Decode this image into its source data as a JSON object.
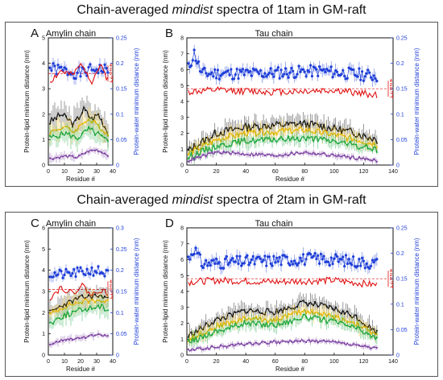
{
  "figure": {
    "top_title": {
      "pre": "Chain-averaged ",
      "em": "mindist",
      "post": " spectra of 1tam in GM-raft"
    },
    "bottom_title": {
      "pre": "Chain-averaged ",
      "em": "mindist",
      "post": " spectra of 2tam in GM-raft"
    }
  },
  "colors": {
    "water": "#1f3fd8",
    "charge": "#e01010",
    "black_series": "#111111",
    "gold_series": "#e8b800",
    "green_series": "#1aa53c",
    "purple_series": "#7a3fa0",
    "axis": "#111111"
  },
  "chart_data": [
    {
      "id": "A",
      "type": "line",
      "panel_label": "A",
      "title": "Amylin chain",
      "xlabel": "Residue #",
      "ylabel": "Protein-lipid minimum distance (nm)",
      "y2label": "Protein-water minimum distance (nm)",
      "xlim": [
        0,
        40
      ],
      "ylim": [
        0,
        5
      ],
      "y2lim": [
        0,
        0.25
      ],
      "xticks": [
        0,
        10,
        20,
        30,
        40
      ],
      "yticks": [
        0,
        1,
        2,
        3,
        4,
        5
      ],
      "y2ticks": [
        0,
        0.05,
        0.1,
        0.15,
        0.2,
        0.25
      ],
      "charge_ticks": [
        "4",
        "2",
        "0",
        "-2",
        "-4"
      ],
      "charge_ref": 3.6,
      "series": [
        {
          "x": [
            1,
            37
          ],
          "knots": [
            [
              1,
              0.19
            ],
            [
              10,
              0.185
            ],
            [
              20,
              0.18
            ],
            [
              30,
              0.19
            ],
            [
              37,
              0.185
            ]
          ],
          "amp": 0.012,
          "seed": 1,
          "dots": true,
          "err": 0.01
        },
        {
          "x": [
            1,
            37
          ],
          "knots": [
            [
              1,
              3.3
            ],
            [
              8,
              3.7
            ],
            [
              15,
              3.5
            ],
            [
              21,
              4.0
            ],
            [
              27,
              3.3
            ],
            [
              32,
              3.9
            ],
            [
              37,
              3.4
            ]
          ],
          "amp": 0.15,
          "seed": 2
        },
        {
          "x": [
            1,
            37
          ],
          "knots": [
            [
              1,
              1.7
            ],
            [
              8,
              2.0
            ],
            [
              16,
              1.6
            ],
            [
              22,
              2.2
            ],
            [
              27,
              1.8
            ],
            [
              31,
              2.0
            ],
            [
              37,
              1.3
            ]
          ],
          "amp": 0.15,
          "seed": 3,
          "err": 0.45
        },
        {
          "x": [
            1,
            37
          ],
          "knots": [
            [
              1,
              1.3
            ],
            [
              10,
              1.5
            ],
            [
              16,
              1.3
            ],
            [
              24,
              1.8
            ],
            [
              30,
              1.6
            ],
            [
              37,
              1.2
            ]
          ],
          "amp": 0.1,
          "seed": 4,
          "err": 0.4
        },
        {
          "x": [
            1,
            37
          ],
          "knots": [
            [
              1,
              1.05
            ],
            [
              10,
              1.25
            ],
            [
              18,
              1.05
            ],
            [
              25,
              1.4
            ],
            [
              31,
              1.2
            ],
            [
              37,
              0.9
            ]
          ],
          "amp": 0.12,
          "seed": 5,
          "err": 0.35
        },
        {
          "x": [
            1,
            37
          ],
          "knots": [
            [
              1,
              0.25
            ],
            [
              10,
              0.35
            ],
            [
              18,
              0.3
            ],
            [
              25,
              0.55
            ],
            [
              30,
              0.6
            ],
            [
              37,
              0.4
            ]
          ],
          "amp": 0.05,
          "seed": 6,
          "err": 0.15
        }
      ]
    },
    {
      "id": "B",
      "type": "line",
      "panel_label": "B",
      "title": "Tau chain",
      "xlabel": "Residue #",
      "ylabel": "Protein-lipid minimum distance (nm)",
      "y2label": "Protein-water minimum distance (nm)",
      "xlim": [
        0,
        140
      ],
      "ylim": [
        0,
        8
      ],
      "y2lim": [
        0,
        0.25
      ],
      "xticks": [
        0,
        20,
        40,
        60,
        80,
        100,
        120,
        140
      ],
      "yticks": [
        0,
        1,
        2,
        3,
        4,
        5,
        6,
        7,
        8
      ],
      "y2ticks": [
        0,
        0.05,
        0.1,
        0.15,
        0.2,
        0.25
      ],
      "charge_ticks": [
        "4",
        "2",
        "0",
        "-2",
        "-4"
      ],
      "charge_ref": 4.8,
      "series": [
        {
          "x": [
            1,
            129
          ],
          "knots": [
            [
              1,
              0.19
            ],
            [
              5,
              0.22
            ],
            [
              10,
              0.18
            ],
            [
              50,
              0.18
            ],
            [
              90,
              0.185
            ],
            [
              129,
              0.175
            ]
          ],
          "amp": 0.012,
          "seed": 11,
          "dots": true,
          "err": 0.01
        },
        {
          "x": [
            1,
            129
          ],
          "knots": [
            [
              1,
              4.6
            ],
            [
              20,
              4.7
            ],
            [
              60,
              4.6
            ],
            [
              100,
              4.7
            ],
            [
              129,
              4.4
            ]
          ],
          "amp": 0.22,
          "seed": 12
        },
        {
          "x": [
            1,
            129
          ],
          "knots": [
            [
              1,
              0.9
            ],
            [
              20,
              2.0
            ],
            [
              40,
              2.4
            ],
            [
              60,
              2.5
            ],
            [
              80,
              2.6
            ],
            [
              100,
              2.3
            ],
            [
              115,
              2.0
            ],
            [
              129,
              1.6
            ]
          ],
          "amp": 0.25,
          "seed": 13,
          "err": 0.5
        },
        {
          "x": [
            1,
            129
          ],
          "knots": [
            [
              1,
              0.7
            ],
            [
              20,
              1.6
            ],
            [
              40,
              2.0
            ],
            [
              60,
              2.1
            ],
            [
              80,
              2.2
            ],
            [
              100,
              1.9
            ],
            [
              115,
              1.6
            ],
            [
              129,
              1.3
            ]
          ],
          "amp": 0.2,
          "seed": 14,
          "err": 0.45
        },
        {
          "x": [
            1,
            129
          ],
          "knots": [
            [
              1,
              0.5
            ],
            [
              20,
              1.2
            ],
            [
              40,
              1.5
            ],
            [
              60,
              1.6
            ],
            [
              80,
              1.7
            ],
            [
              100,
              1.5
            ],
            [
              115,
              1.2
            ],
            [
              129,
              1.0
            ]
          ],
          "amp": 0.2,
          "seed": 15,
          "err": 0.35
        },
        {
          "x": [
            1,
            129
          ],
          "knots": [
            [
              1,
              0.3
            ],
            [
              20,
              0.8
            ],
            [
              40,
              0.7
            ],
            [
              60,
              0.6
            ],
            [
              80,
              0.8
            ],
            [
              100,
              0.6
            ],
            [
              129,
              0.3
            ]
          ],
          "amp": 0.1,
          "seed": 16,
          "err": 0.15
        }
      ]
    },
    {
      "id": "C",
      "type": "line",
      "panel_label": "C",
      "title": "Amylin chain",
      "xlabel": "Residue #",
      "ylabel": "Protein-lipid minimum distance (nm)",
      "y2label": "Protein-water minimum distance (nm)",
      "xlim": [
        0,
        40
      ],
      "ylim": [
        0,
        6
      ],
      "y2lim": [
        0,
        0.3
      ],
      "xticks": [
        0,
        10,
        20,
        30,
        40
      ],
      "yticks": [
        0,
        1,
        2,
        3,
        4,
        5,
        6
      ],
      "y2ticks": [
        0,
        0.05,
        0.1,
        0.15,
        0.2,
        0.25,
        0.3
      ],
      "charge_ticks": [
        "4",
        "2",
        "0",
        "-2",
        "-4"
      ],
      "charge_ref": 3.1,
      "series": [
        {
          "x": [
            1,
            37
          ],
          "knots": [
            [
              1,
              0.19
            ],
            [
              10,
              0.19
            ],
            [
              20,
              0.195
            ],
            [
              30,
              0.2
            ],
            [
              37,
              0.19
            ]
          ],
          "amp": 0.012,
          "seed": 21,
          "dots": true,
          "err": 0.01
        },
        {
          "x": [
            1,
            37
          ],
          "knots": [
            [
              1,
              2.7
            ],
            [
              8,
              3.2
            ],
            [
              15,
              2.9
            ],
            [
              21,
              3.3
            ],
            [
              27,
              2.8
            ],
            [
              32,
              3.1
            ],
            [
              37,
              2.9
            ]
          ],
          "amp": 0.15,
          "seed": 22
        },
        {
          "x": [
            1,
            37
          ],
          "knots": [
            [
              1,
              2.0
            ],
            [
              10,
              2.4
            ],
            [
              20,
              2.7
            ],
            [
              30,
              2.8
            ],
            [
              37,
              2.7
            ]
          ],
          "amp": 0.12,
          "seed": 23,
          "err": 0.4
        },
        {
          "x": [
            1,
            37
          ],
          "knots": [
            [
              1,
              1.9
            ],
            [
              10,
              2.3
            ],
            [
              20,
              2.5
            ],
            [
              30,
              2.6
            ],
            [
              37,
              2.5
            ]
          ],
          "amp": 0.12,
          "seed": 24,
          "err": 0.4
        },
        {
          "x": [
            1,
            37
          ],
          "knots": [
            [
              1,
              1.5
            ],
            [
              10,
              1.9
            ],
            [
              20,
              2.1
            ],
            [
              30,
              2.3
            ],
            [
              37,
              2.2
            ]
          ],
          "amp": 0.15,
          "seed": 25,
          "err": 0.35
        },
        {
          "x": [
            1,
            37
          ],
          "knots": [
            [
              1,
              0.5
            ],
            [
              10,
              0.75
            ],
            [
              20,
              0.8
            ],
            [
              30,
              0.95
            ],
            [
              37,
              0.9
            ]
          ],
          "amp": 0.06,
          "seed": 26,
          "err": 0.15
        }
      ]
    },
    {
      "id": "D",
      "type": "line",
      "panel_label": "D",
      "title": "Tau chain",
      "xlabel": "Residue #",
      "ylabel": "Protein-lipid minimum distance (nm)",
      "y2label": "Protein-water minimum distance (nm)",
      "xlim": [
        0,
        140
      ],
      "ylim": [
        0,
        8
      ],
      "y2lim": [
        0,
        0.25
      ],
      "xticks": [
        0,
        20,
        40,
        60,
        80,
        100,
        120,
        140
      ],
      "yticks": [
        0,
        1,
        2,
        3,
        4,
        5,
        6,
        7,
        8
      ],
      "y2ticks": [
        0,
        0.05,
        0.1,
        0.15,
        0.2,
        0.25
      ],
      "charge_ticks": [
        "4",
        "2",
        "0",
        "-2",
        "-4"
      ],
      "charge_ref": 4.8,
      "series": [
        {
          "x": [
            1,
            129
          ],
          "knots": [
            [
              1,
              0.19
            ],
            [
              5,
              0.21
            ],
            [
              10,
              0.18
            ],
            [
              50,
              0.185
            ],
            [
              90,
              0.19
            ],
            [
              129,
              0.18
            ]
          ],
          "amp": 0.012,
          "seed": 31,
          "dots": true,
          "err": 0.01
        },
        {
          "x": [
            1,
            129
          ],
          "knots": [
            [
              1,
              4.6
            ],
            [
              20,
              4.7
            ],
            [
              60,
              4.6
            ],
            [
              100,
              4.7
            ],
            [
              129,
              4.4
            ]
          ],
          "amp": 0.22,
          "seed": 32
        },
        {
          "x": [
            1,
            129
          ],
          "knots": [
            [
              1,
              1.2
            ],
            [
              20,
              2.2
            ],
            [
              40,
              2.8
            ],
            [
              60,
              2.7
            ],
            [
              80,
              3.3
            ],
            [
              100,
              2.9
            ],
            [
              115,
              2.4
            ],
            [
              129,
              1.4
            ]
          ],
          "amp": 0.2,
          "seed": 33,
          "err": 0.45
        },
        {
          "x": [
            1,
            129
          ],
          "knots": [
            [
              1,
              1.0
            ],
            [
              20,
              1.8
            ],
            [
              40,
              2.3
            ],
            [
              60,
              2.2
            ],
            [
              80,
              2.8
            ],
            [
              100,
              2.4
            ],
            [
              115,
              2.0
            ],
            [
              129,
              1.2
            ]
          ],
          "amp": 0.18,
          "seed": 34,
          "err": 0.4
        },
        {
          "x": [
            1,
            129
          ],
          "knots": [
            [
              1,
              0.8
            ],
            [
              20,
              1.5
            ],
            [
              40,
              2.0
            ],
            [
              60,
              1.9
            ],
            [
              80,
              2.4
            ],
            [
              100,
              2.1
            ],
            [
              115,
              1.7
            ],
            [
              129,
              1.0
            ]
          ],
          "amp": 0.18,
          "seed": 35,
          "err": 0.35
        },
        {
          "x": [
            1,
            129
          ],
          "knots": [
            [
              1,
              0.3
            ],
            [
              20,
              0.5
            ],
            [
              40,
              0.7
            ],
            [
              60,
              0.8
            ],
            [
              80,
              0.9
            ],
            [
              100,
              0.8
            ],
            [
              129,
              0.4
            ]
          ],
          "amp": 0.1,
          "seed": 36,
          "err": 0.15
        }
      ]
    }
  ]
}
